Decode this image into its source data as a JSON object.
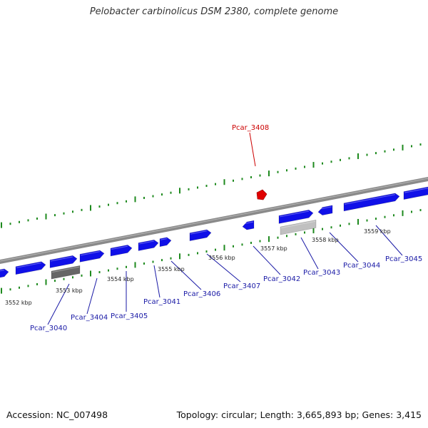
{
  "title": "Pelobacter carbinolicus DSM 2380, complete genome",
  "footer": {
    "accession": "Accession: NC_007498",
    "summary": "Topology: circular; Length: 3,665,893 bp; Genes: 3,415"
  },
  "colors": {
    "gene": "#1010e8",
    "highlight": "#e00000",
    "rna_dark": "#666666",
    "rna_light": "#c0c0c0",
    "tick": "#1e8a1e",
    "backbone": "#888888"
  },
  "scale_labels": [
    "3552 kbp",
    "3553 kbp",
    "3554 kbp",
    "3555 kbp",
    "3556 kbp",
    "3557 kbp",
    "3558 kbp",
    "3559 kbp"
  ],
  "genes": [
    {
      "id": "Pcar_3040",
      "color": "blue"
    },
    {
      "id": "Pcar_3404",
      "color": "blue"
    },
    {
      "id": "Pcar_3405",
      "color": "blue"
    },
    {
      "id": "Pcar_3041",
      "color": "blue"
    },
    {
      "id": "Pcar_3406",
      "color": "blue"
    },
    {
      "id": "Pcar_3407",
      "color": "blue"
    },
    {
      "id": "Pcar_3042",
      "color": "blue"
    },
    {
      "id": "Pcar_3043",
      "color": "blue"
    },
    {
      "id": "Pcar_3044",
      "color": "blue"
    },
    {
      "id": "Pcar_3045",
      "color": "blue"
    },
    {
      "id": "Pcar_3408",
      "color": "red"
    }
  ]
}
